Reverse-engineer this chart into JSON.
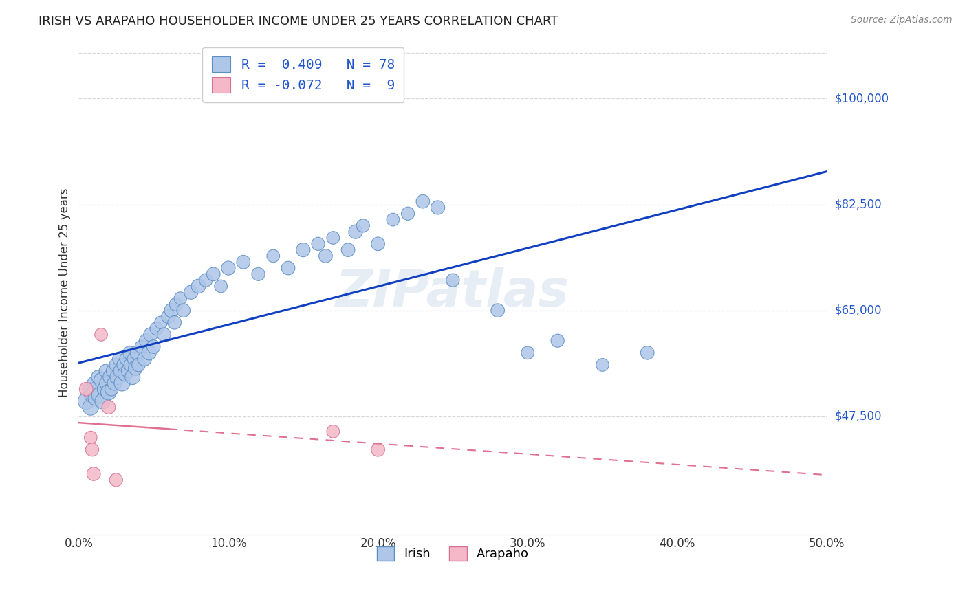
{
  "title": "IRISH VS ARAPAHO HOUSEHOLDER INCOME UNDER 25 YEARS CORRELATION CHART",
  "source": "Source: ZipAtlas.com",
  "xlabel_ticks": [
    "0.0%",
    "10.0%",
    "20.0%",
    "30.0%",
    "40.0%",
    "50.0%"
  ],
  "xlabel_vals": [
    0.0,
    0.1,
    0.2,
    0.3,
    0.4,
    0.5
  ],
  "ylabel_label": "Householder Income Under 25 years",
  "xlim": [
    0.0,
    0.5
  ],
  "ylim": [
    28000,
    108000
  ],
  "irish_color": "#aec6e8",
  "irish_edge_color": "#5b8ec4",
  "arapaho_color": "#f4b8c8",
  "arapaho_edge_color": "#d47090",
  "irish_line_color": "#1040c0",
  "arapaho_line_color": "#e07090",
  "R_irish": 0.409,
  "N_irish": 78,
  "R_arapaho": -0.072,
  "N_arapaho": 9,
  "grid_color": "#d8d8d8",
  "grid_vals": [
    47500,
    65000,
    82500,
    100000
  ],
  "right_labels": {
    "$100,000": 100000,
    "$82,500": 82500,
    "$65,000": 65000,
    "$47,500": 47500
  },
  "irish_points": [
    [
      0.005,
      50000
    ],
    [
      0.007,
      52000
    ],
    [
      0.008,
      49000
    ],
    [
      0.009,
      51000
    ],
    [
      0.01,
      53000
    ],
    [
      0.011,
      50500
    ],
    [
      0.012,
      52000
    ],
    [
      0.013,
      54000
    ],
    [
      0.014,
      51000
    ],
    [
      0.015,
      53500
    ],
    [
      0.016,
      50000
    ],
    [
      0.017,
      52000
    ],
    [
      0.018,
      55000
    ],
    [
      0.019,
      53000
    ],
    [
      0.02,
      51500
    ],
    [
      0.021,
      54000
    ],
    [
      0.022,
      52000
    ],
    [
      0.023,
      55000
    ],
    [
      0.024,
      53000
    ],
    [
      0.025,
      56000
    ],
    [
      0.026,
      54000
    ],
    [
      0.027,
      57000
    ],
    [
      0.028,
      55000
    ],
    [
      0.029,
      53000
    ],
    [
      0.03,
      56000
    ],
    [
      0.031,
      54500
    ],
    [
      0.032,
      57000
    ],
    [
      0.033,
      55000
    ],
    [
      0.034,
      58000
    ],
    [
      0.035,
      56000
    ],
    [
      0.036,
      54000
    ],
    [
      0.037,
      57000
    ],
    [
      0.038,
      55500
    ],
    [
      0.039,
      58000
    ],
    [
      0.04,
      56000
    ],
    [
      0.042,
      59000
    ],
    [
      0.044,
      57000
    ],
    [
      0.045,
      60000
    ],
    [
      0.047,
      58000
    ],
    [
      0.048,
      61000
    ],
    [
      0.05,
      59000
    ],
    [
      0.052,
      62000
    ],
    [
      0.055,
      63000
    ],
    [
      0.057,
      61000
    ],
    [
      0.06,
      64000
    ],
    [
      0.062,
      65000
    ],
    [
      0.064,
      63000
    ],
    [
      0.065,
      66000
    ],
    [
      0.068,
      67000
    ],
    [
      0.07,
      65000
    ],
    [
      0.075,
      68000
    ],
    [
      0.08,
      69000
    ],
    [
      0.085,
      70000
    ],
    [
      0.09,
      71000
    ],
    [
      0.095,
      69000
    ],
    [
      0.1,
      72000
    ],
    [
      0.11,
      73000
    ],
    [
      0.12,
      71000
    ],
    [
      0.13,
      74000
    ],
    [
      0.14,
      72000
    ],
    [
      0.15,
      75000
    ],
    [
      0.16,
      76000
    ],
    [
      0.165,
      74000
    ],
    [
      0.17,
      77000
    ],
    [
      0.18,
      75000
    ],
    [
      0.185,
      78000
    ],
    [
      0.19,
      79000
    ],
    [
      0.2,
      76000
    ],
    [
      0.21,
      80000
    ],
    [
      0.22,
      81000
    ],
    [
      0.23,
      83000
    ],
    [
      0.24,
      82000
    ],
    [
      0.25,
      70000
    ],
    [
      0.28,
      65000
    ],
    [
      0.3,
      58000
    ],
    [
      0.32,
      60000
    ],
    [
      0.35,
      56000
    ],
    [
      0.38,
      58000
    ]
  ],
  "arapaho_points": [
    [
      0.005,
      52000
    ],
    [
      0.008,
      44000
    ],
    [
      0.009,
      42000
    ],
    [
      0.01,
      38000
    ],
    [
      0.015,
      61000
    ],
    [
      0.02,
      49000
    ],
    [
      0.025,
      37000
    ],
    [
      0.17,
      45000
    ],
    [
      0.2,
      42000
    ]
  ],
  "irish_sizes": [
    300,
    200,
    280,
    250,
    180,
    220,
    260,
    200,
    280,
    230,
    260,
    210,
    190,
    240,
    270,
    220,
    200,
    210,
    230,
    200,
    250,
    190,
    220,
    280,
    200,
    230,
    210,
    200,
    190,
    220,
    250,
    200,
    230,
    210,
    200,
    190,
    220,
    200,
    230,
    210,
    200,
    190,
    180,
    200,
    210,
    220,
    200,
    190,
    180,
    200,
    210,
    220,
    190,
    200,
    180,
    210,
    200,
    190,
    180,
    200,
    210,
    190,
    200,
    180,
    200,
    210,
    190,
    200,
    180,
    190,
    200,
    210,
    190,
    200,
    180,
    190,
    180,
    200
  ],
  "arapaho_sizes": [
    200,
    180,
    190,
    200,
    180,
    200,
    190,
    180,
    200
  ]
}
